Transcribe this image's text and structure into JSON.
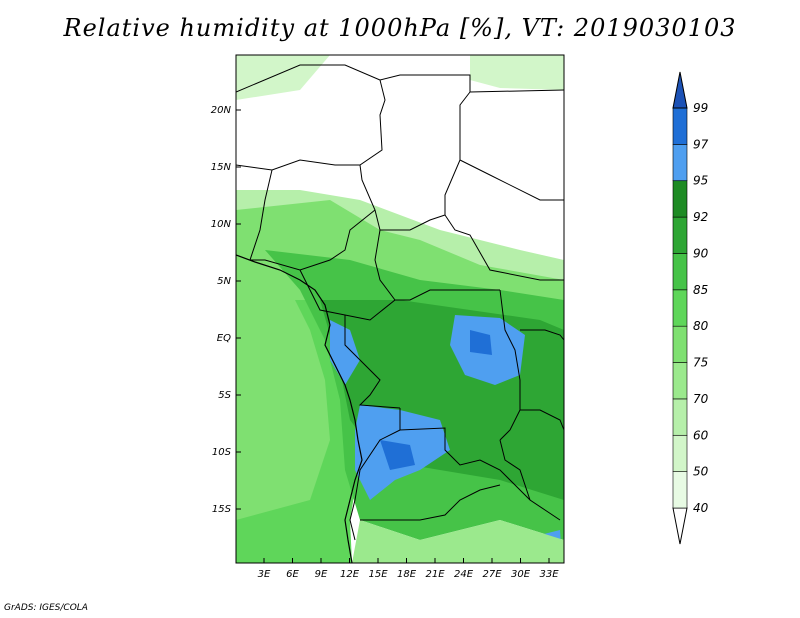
{
  "title": "Relative humidity at 1000hPa [%], VT: 2019030103",
  "credit": "GrADS: IGES/COLA",
  "map": {
    "lat_labels": [
      "20N",
      "15N",
      "10N",
      "5N",
      "EQ",
      "5S",
      "10S",
      "15S"
    ],
    "lon_labels": [
      "3E",
      "6E",
      "9E",
      "12E",
      "15E",
      "18E",
      "21E",
      "24E",
      "27E",
      "30E",
      "33E"
    ]
  },
  "colorbar": {
    "levels": [
      "40",
      "50",
      "60",
      "70",
      "75",
      "80",
      "85",
      "90",
      "92",
      "95",
      "97",
      "99"
    ],
    "colors": [
      "#ffffff",
      "#e8fbe4",
      "#d2f6c9",
      "#b6efaa",
      "#9be98d",
      "#7fe071",
      "#5fd65a",
      "#46c348",
      "#2ea634",
      "#1e8b24",
      "#4f9ff0",
      "#1f6fd6",
      "#1c52b6"
    ]
  }
}
